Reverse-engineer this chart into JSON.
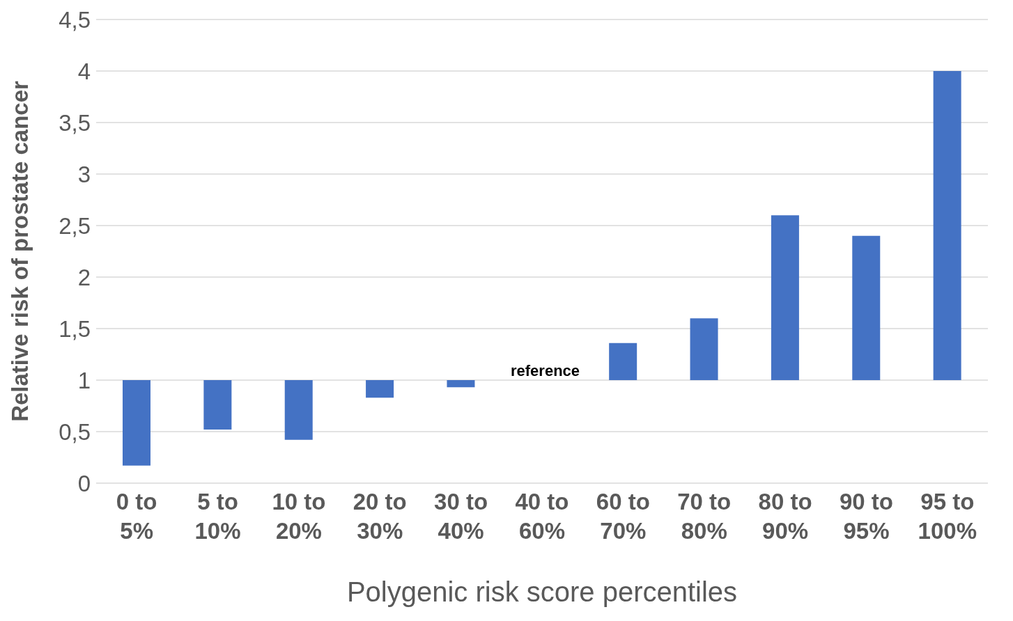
{
  "chart_data": {
    "type": "bar",
    "xlabel": "Polygenic risk score percentiles",
    "ylabel": "Relative risk of prostate cancer",
    "categories": [
      "0 to 5%",
      "5 to 10%",
      "10 to 20%",
      "20 to 30%",
      "30 to 40%",
      "40 to 60%",
      "60 to 70%",
      "70 to 80%",
      "80 to 90%",
      "90 to 95%",
      "95 to 100%"
    ],
    "base": [
      1,
      1,
      1,
      1,
      1,
      null,
      1,
      1,
      1,
      1,
      1
    ],
    "values": [
      -0.83,
      -0.48,
      -0.58,
      -0.17,
      -0.07,
      null,
      0.36,
      0.6,
      1.6,
      1.4,
      3
    ],
    "color": "#4472c4",
    "ylim": [
      0,
      4.5
    ],
    "yticks": [
      0,
      {
        "value": 0.5,
        "label": "0,5"
      },
      1,
      {
        "value": 1.5,
        "label": "1,5"
      },
      2,
      {
        "value": 2.5,
        "label": "2,5"
      },
      3,
      {
        "value": 3.5,
        "label": "3,5"
      },
      4,
      {
        "value": 4.5,
        "label": "4,5"
      }
    ],
    "grid": "y",
    "annotations": [
      "reference"
    ]
  }
}
